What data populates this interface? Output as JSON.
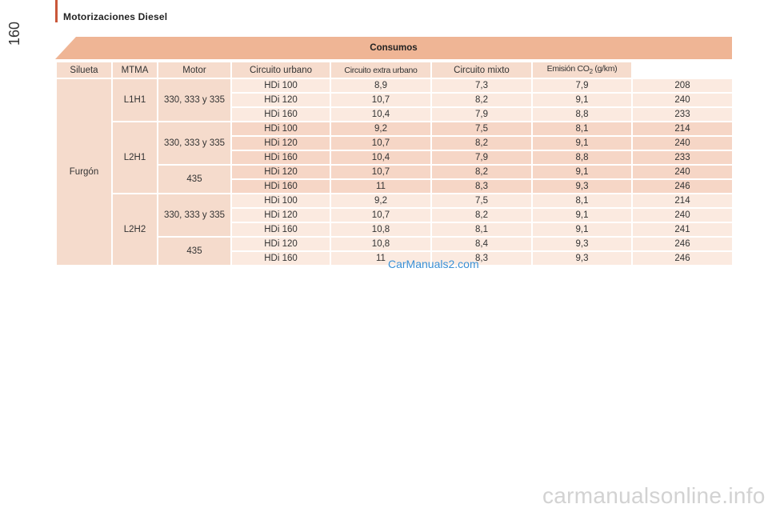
{
  "page": {
    "section_title": "Motorizaciones Diesel",
    "page_number": "160"
  },
  "table": {
    "title": "Consumos",
    "headers": {
      "silueta": "Silueta",
      "mtma": "MTMA",
      "motor": "Motor",
      "urbano": "Circuito urbano",
      "extra": "Circuito extra urbano",
      "mixto": "Circuito mixto",
      "emision_prefix": "Emisión CO",
      "emision_sub": "2",
      "emision_suffix": " (g/km)"
    },
    "silueta": "Furgón",
    "groups": {
      "l1h1": "L1H1",
      "l2h1": "L2H1",
      "l2h2": "L2H2"
    },
    "mtma": {
      "a": "330, 333 y 335",
      "b": "330, 333 y 335",
      "c": "435",
      "d": "330, 333 y 335",
      "e": "435"
    },
    "rows": [
      {
        "motor": "HDi 100",
        "urbano": "8,9",
        "extra": "7,3",
        "mixto": "7,9",
        "co2": "208"
      },
      {
        "motor": "HDi 120",
        "urbano": "10,7",
        "extra": "8,2",
        "mixto": "9,1",
        "co2": "240"
      },
      {
        "motor": "HDi 160",
        "urbano": "10,4",
        "extra": "7,9",
        "mixto": "8,8",
        "co2": "233"
      },
      {
        "motor": "HDi 100",
        "urbano": "9,2",
        "extra": "7,5",
        "mixto": "8,1",
        "co2": "214"
      },
      {
        "motor": "HDi 120",
        "urbano": "10,7",
        "extra": "8,2",
        "mixto": "9,1",
        "co2": "240"
      },
      {
        "motor": "HDi 160",
        "urbano": "10,4",
        "extra": "7,9",
        "mixto": "8,8",
        "co2": "233"
      },
      {
        "motor": "HDi 120",
        "urbano": "10,7",
        "extra": "8,2",
        "mixto": "9,1",
        "co2": "240"
      },
      {
        "motor": "HDi 160",
        "urbano": "11",
        "extra": "8,3",
        "mixto": "9,3",
        "co2": "246"
      },
      {
        "motor": "HDi 100",
        "urbano": "9,2",
        "extra": "7,5",
        "mixto": "8,1",
        "co2": "214"
      },
      {
        "motor": "HDi 120",
        "urbano": "10,7",
        "extra": "8,2",
        "mixto": "9,1",
        "co2": "240"
      },
      {
        "motor": "HDi 160",
        "urbano": "10,8",
        "extra": "8,1",
        "mixto": "9,1",
        "co2": "241"
      },
      {
        "motor": "HDi 120",
        "urbano": "10,8",
        "extra": "8,4",
        "mixto": "9,3",
        "co2": "246"
      },
      {
        "motor": "HDi 160",
        "urbano": "11",
        "extra": "8,3",
        "mixto": "9,3",
        "co2": "246"
      }
    ]
  },
  "watermarks": {
    "overlay": "CarManuals2.com",
    "footer": "carmanualsonline.info"
  },
  "colors": {
    "accent_bar": "#c9573a",
    "banner": "#efb595",
    "header_cell": "#f6dccd",
    "row_light": "#fbeae0",
    "row_dark": "#f6d6c6",
    "watermark": "#3a8fd4"
  }
}
